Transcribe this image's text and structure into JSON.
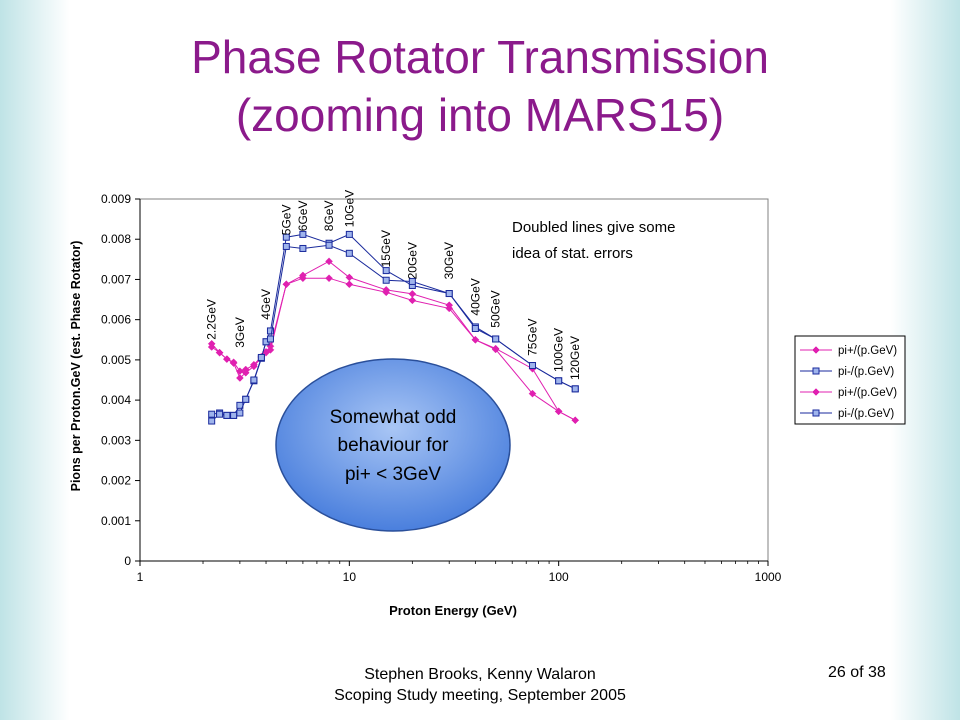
{
  "slide": {
    "title_line1": "Phase Rotator Transmission",
    "title_line2": "(zooming into MARS15)",
    "footer_line1": "Stephen Brooks, Kenny Walaron",
    "footer_line2": "Scoping Study meeting, September 2005",
    "slide_number": "26 of 38"
  },
  "chart_data": {
    "type": "scatter",
    "xlabel": "Proton Energy (GeV)",
    "ylabel": "Pions per Proton.GeV (est. Phase Rotator)",
    "x_scale": "log",
    "xlim": [
      1,
      1000
    ],
    "ylim": [
      0,
      0.009
    ],
    "x_ticks": [
      1,
      10,
      100,
      1000
    ],
    "x_tick_labels": [
      "1",
      "10",
      "100",
      "1000"
    ],
    "y_ticks": [
      0,
      0.001,
      0.002,
      0.003,
      0.004,
      0.005,
      0.006,
      0.007,
      0.008,
      0.009
    ],
    "y_tick_labels": [
      "0",
      "0.001",
      "0.002",
      "0.003",
      "0.004",
      "0.005",
      "0.006",
      "0.007",
      "0.008",
      "0.009"
    ],
    "grid": false,
    "legend_position": "right",
    "colors": {
      "pi_plus": "#e020b0",
      "pi_minus": "#1a2a9c",
      "pi_minus_fill": "#9fb4ec"
    },
    "series": [
      {
        "name": "pi+/(p.GeV)",
        "marker": "diamond",
        "color": "#e020b0",
        "x": [
          2.2,
          2.4,
          2.6,
          2.8,
          3,
          3.2,
          3.5,
          3.8,
          4,
          4.2,
          5,
          6,
          8,
          10,
          15,
          20,
          30,
          40,
          50,
          75,
          100,
          120
        ],
        "y": [
          0.0054,
          0.00518,
          0.00502,
          0.00494,
          0.00472,
          0.00476,
          0.00488,
          0.00508,
          0.00518,
          0.00534,
          0.00688,
          0.0071,
          0.00745,
          0.00705,
          0.00674,
          0.00664,
          0.00636,
          0.0055,
          0.00528,
          0.00478,
          0.00372,
          0.0035
        ]
      },
      {
        "name": "pi-/(p.GeV)",
        "marker": "square",
        "color": "#1a2a9c",
        "x": [
          2.2,
          2.4,
          2.6,
          2.8,
          3,
          3.2,
          3.5,
          3.8,
          4,
          4.2,
          5,
          6,
          8,
          10,
          15,
          20,
          30,
          40,
          50,
          75,
          100,
          120
        ],
        "y": [
          0.00365,
          0.00368,
          0.00362,
          0.00362,
          0.00387,
          0.00402,
          0.00448,
          0.00504,
          0.00545,
          0.00572,
          0.00805,
          0.00812,
          0.0079,
          0.00812,
          0.00722,
          0.00685,
          0.00665,
          0.00582,
          0.00552,
          0.00486,
          0.00448,
          0.00428
        ]
      },
      {
        "name": "pi+/(p.GeV)",
        "marker": "diamond",
        "color": "#e020b0",
        "x": [
          2.2,
          2.4,
          2.6,
          2.8,
          3,
          3.2,
          3.5,
          3.8,
          4,
          4.2,
          5,
          6,
          8,
          10,
          15,
          20,
          30,
          40,
          50,
          75,
          100,
          120
        ],
        "y": [
          0.00532,
          0.00518,
          0.00502,
          0.00492,
          0.00455,
          0.00468,
          0.00484,
          0.00506,
          0.0052,
          0.00525,
          0.00688,
          0.00703,
          0.00703,
          0.00688,
          0.00668,
          0.00648,
          0.00628,
          0.0055,
          0.00526,
          0.00416,
          0.00372,
          0.0035
        ]
      },
      {
        "name": "pi-/(p.GeV)",
        "marker": "square",
        "color": "#1a2a9c",
        "x": [
          2.2,
          2.4,
          2.6,
          2.8,
          3,
          3.2,
          3.5,
          3.8,
          4,
          4.2,
          5,
          6,
          8,
          10,
          15,
          20,
          30,
          40,
          50,
          75,
          100,
          120
        ],
        "y": [
          0.00348,
          0.00365,
          0.00362,
          0.00362,
          0.00368,
          0.00402,
          0.0045,
          0.00506,
          0.00545,
          0.00552,
          0.00782,
          0.00777,
          0.00785,
          0.00765,
          0.00698,
          0.00695,
          0.00665,
          0.00578,
          0.00552,
          0.00486,
          0.00448,
          0.00428
        ]
      }
    ],
    "energy_labels": [
      {
        "text": "2.2GeV",
        "x": 2.2,
        "y": 0.0055
      },
      {
        "text": "3GeV",
        "x": 3,
        "y": 0.0053
      },
      {
        "text": "4GeV",
        "x": 4,
        "y": 0.006
      },
      {
        "text": "5GeV",
        "x": 5,
        "y": 0.0081
      },
      {
        "text": "6GeV",
        "x": 6,
        "y": 0.0082
      },
      {
        "text": "8GeV",
        "x": 8,
        "y": 0.0082
      },
      {
        "text": "10GeV",
        "x": 10,
        "y": 0.0083
      },
      {
        "text": "15GeV",
        "x": 15,
        "y": 0.0073
      },
      {
        "text": "20GeV",
        "x": 20,
        "y": 0.007
      },
      {
        "text": "30GeV",
        "x": 30,
        "y": 0.007
      },
      {
        "text": "40GeV",
        "x": 40,
        "y": 0.0061
      },
      {
        "text": "50GeV",
        "x": 50,
        "y": 0.0058
      },
      {
        "text": "75GeV",
        "x": 75,
        "y": 0.0051
      },
      {
        "text": "100GeV",
        "x": 100,
        "y": 0.0047
      },
      {
        "text": "120GeV",
        "x": 120,
        "y": 0.0045
      }
    ],
    "annotations": {
      "note_line1": "Doubled lines give some",
      "note_line2": "idea of stat. errors",
      "callout_line1": "Somewhat odd",
      "callout_line2": "behaviour for",
      "callout_line3": "pi+ < 3GeV"
    }
  }
}
